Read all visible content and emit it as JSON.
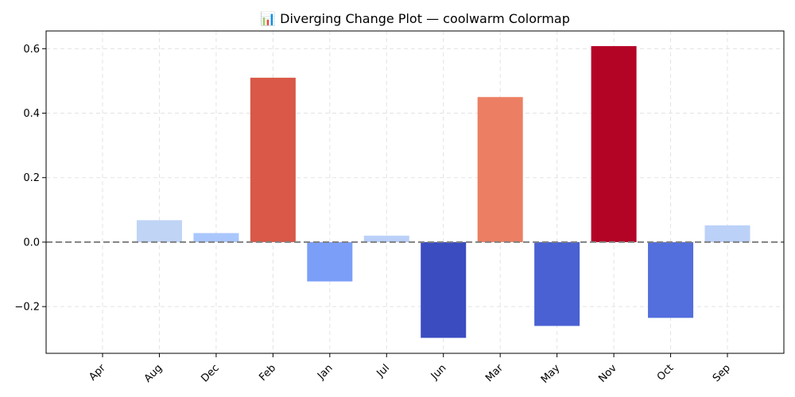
{
  "chart_data": {
    "type": "bar",
    "title": "📊 Diverging Change Plot — coolwarm Colormap",
    "xlabel": "",
    "ylabel": "",
    "categories": [
      "Apr",
      "Aug",
      "Dec",
      "Feb",
      "Jan",
      "Jul",
      "Jun",
      "Mar",
      "May",
      "Nov",
      "Oct",
      "Sep"
    ],
    "values": [
      0.0,
      0.068,
      0.028,
      0.51,
      -0.122,
      0.02,
      -0.297,
      0.45,
      -0.26,
      0.608,
      -0.235,
      0.052
    ],
    "colors": [
      "#dcdddd",
      "#c0d4f5",
      "#aac7fd",
      "#d95847",
      "#7b9ff9",
      "#bad0f8",
      "#3b4cc0",
      "#ec7f63",
      "#4961d2",
      "#b40426",
      "#536edd",
      "#bbd1f8"
    ],
    "ylim": [
      -0.345,
      0.655
    ],
    "y_ticks": [
      -0.2,
      0.0,
      0.2,
      0.4,
      0.6
    ],
    "y_tick_labels": [
      "−0.2",
      "0.0",
      "0.2",
      "0.4",
      "0.6"
    ],
    "grid": true,
    "zero_line": true,
    "legend": "none"
  }
}
